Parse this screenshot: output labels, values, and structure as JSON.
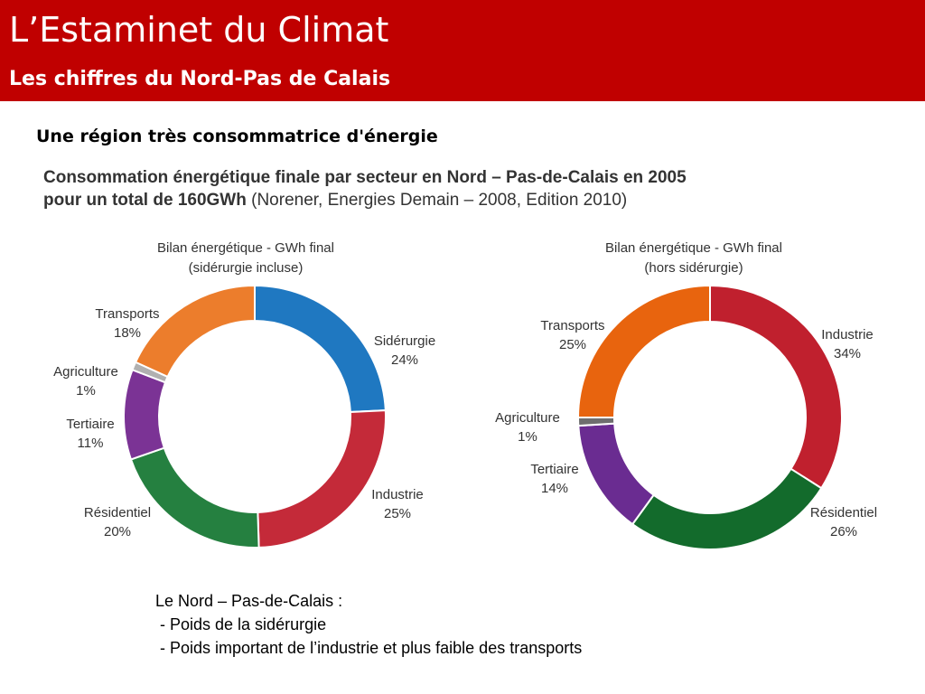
{
  "slide": {
    "title": "L’Estaminet du Climat",
    "subtitle": "Les chiffres du Nord-Pas de Calais",
    "headline": "Une région très consommatrice d'énergie",
    "chart_heading_bold": "Consommation énergétique finale par secteur en Nord – Pas-de-Calais en 2005\npour un total de 160GWh",
    "chart_heading_source": " (Norener, Energies Demain – 2008, Edition 2010)",
    "notes": [
      "Le Nord – Pas-de-Calais :",
      " - Poids de la sidérurgie",
      " - Poids important de l’industrie et plus faible des transports"
    ]
  },
  "colors": {
    "header_bg": "#c00000",
    "siderurgie": "#1f78c1",
    "industrie": "#c0202e",
    "residentiel": "#1e7b3a",
    "tertiaire": "#6a2c91",
    "agriculture": "#7f7f7f",
    "transports": "#e8731e"
  },
  "chart_data": [
    {
      "type": "pie",
      "title_line1": "Bilan énergétique - GWh final",
      "title_line2": "(sidérurgie incluse)",
      "slices": [
        {
          "name": "Sidérurgie",
          "value": 24,
          "label": "24%",
          "color": "#1f78c1"
        },
        {
          "name": "Industrie",
          "value": 25,
          "label": "25%",
          "color": "#c42a39"
        },
        {
          "name": "Résidentiel",
          "value": 20,
          "label": "20%",
          "color": "#258040"
        },
        {
          "name": "Tertiaire",
          "value": 11,
          "label": "11%",
          "color": "#7b3395"
        },
        {
          "name": "Agriculture",
          "value": 1,
          "label": "1%",
          "color": "#b0b0b0"
        },
        {
          "name": "Transports",
          "value": 18,
          "label": "18%",
          "color": "#ec7d2c"
        }
      ]
    },
    {
      "type": "pie",
      "title_line1": "Bilan énergétique - GWh final",
      "title_line2": "(hors sidérurgie)",
      "slices": [
        {
          "name": "Industrie",
          "value": 34,
          "label": "34%",
          "color": "#c0202e"
        },
        {
          "name": "Résidentiel",
          "value": 26,
          "label": "26%",
          "color": "#136b2c"
        },
        {
          "name": "Tertiaire",
          "value": 14,
          "label": "14%",
          "color": "#6a2c91"
        },
        {
          "name": "Agriculture",
          "value": 1,
          "label": "1%",
          "color": "#6e6e6e"
        },
        {
          "name": "Transports",
          "value": 25,
          "label": "25%",
          "color": "#e8640e"
        }
      ]
    }
  ]
}
